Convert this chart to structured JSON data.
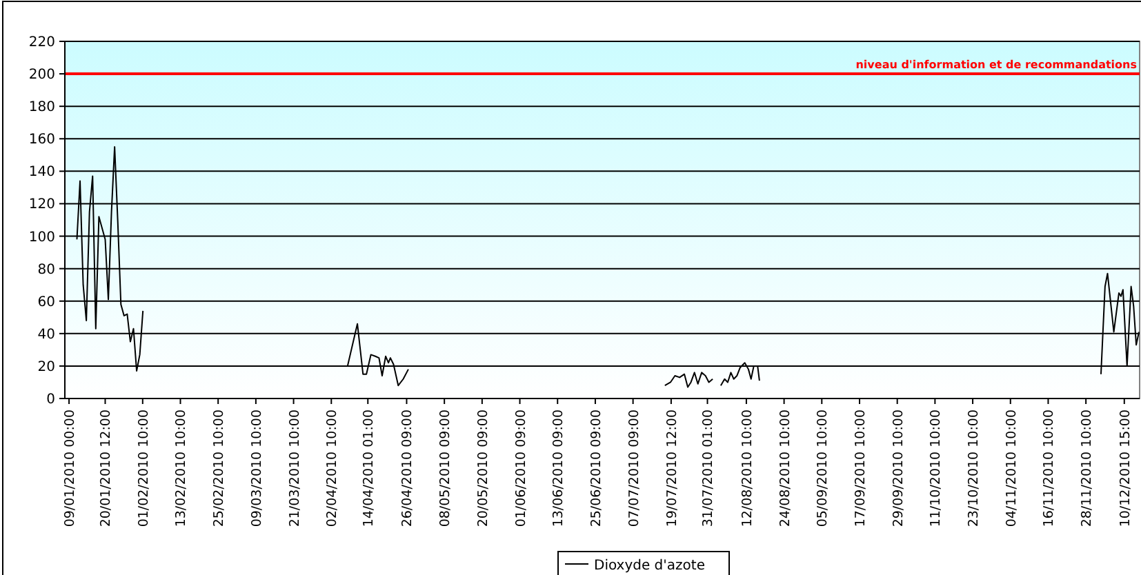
{
  "chart_data": {
    "type": "line",
    "x": [
      "2010-01-11T12:00",
      "2010-01-12T12:00",
      "2010-01-13T12:00",
      "2010-01-14T12:00",
      "2010-01-15T12:00",
      "2010-01-16T12:00",
      "2010-01-17T12:00",
      "2010-01-18T12:00",
      "2010-01-19T12:00",
      "2010-01-20T12:00",
      "2010-01-21T12:00",
      "2010-01-22T12:00",
      "2010-01-23T12:00",
      "2010-01-24T12:00",
      "2010-01-25T12:00",
      "2010-01-26T12:00",
      "2010-01-27T12:00",
      "2010-01-28T12:00",
      "2010-01-29T12:00",
      "2010-01-30T12:00",
      "2010-01-31T12:00",
      "2010-02-01T12:00",
      "2010-03-15T12:00",
      "2010-04-07T14:00",
      "2010-04-10T17:00",
      "2010-04-12T12:00",
      "2010-04-13T14:00",
      "2010-04-15T00:00",
      "2010-04-16T10:00",
      "2010-04-17T14:00",
      "2010-04-18T14:00",
      "2010-04-19T17:00",
      "2010-04-20T14:00",
      "2010-04-21T05:00",
      "2010-04-22T05:00",
      "2010-04-23T17:00",
      "2010-04-25T07:00",
      "2010-04-26T22:00",
      "2010-06-01T12:00",
      "2010-07-17T12:00",
      "2010-07-19T07:00",
      "2010-07-20T17:00",
      "2010-07-22T05:00",
      "2010-07-23T17:00",
      "2010-07-24T19:00",
      "2010-07-25T19:00",
      "2010-07-26T22:00",
      "2010-07-28T00:00",
      "2010-07-29T05:00",
      "2010-07-30T10:00",
      "2010-07-31T12:00",
      "2010-08-01T17:00",
      "2010-08-03T00:00",
      "2010-08-04T07:00",
      "2010-08-05T12:00",
      "2010-08-06T12:00",
      "2010-08-07T12:00",
      "2010-08-08T10:00",
      "2010-08-09T10:00",
      "2010-08-10T10:00",
      "2010-08-11T22:00",
      "2010-08-13T02:00",
      "2010-08-13T22:00",
      "2010-08-14T19:00",
      "2010-08-16T00:00",
      "2010-08-16T14:00",
      "2010-10-15T12:00",
      "2010-12-03T05:00",
      "2010-12-04T12:00",
      "2010-12-05T07:00",
      "2010-12-07T07:00",
      "2010-12-08T22:00",
      "2010-12-09T14:00",
      "2010-12-10T05:00",
      "2010-12-11T12:00",
      "2010-12-12T19:00",
      "2010-12-13T14:00",
      "2010-12-14T10:00",
      "2010-12-15T07:00"
    ],
    "series": [
      {
        "name": "Dioxyde d'azote",
        "color": "#000000",
        "values": [
          98,
          134,
          70,
          48,
          115,
          137,
          43,
          112,
          105,
          98,
          61,
          115,
          155,
          109,
          58,
          51,
          52,
          35,
          43,
          17,
          27,
          54,
          null,
          20,
          46,
          15,
          15,
          27,
          26,
          25,
          14,
          26,
          22,
          25,
          21,
          8,
          12,
          18,
          null,
          8,
          10,
          14,
          13,
          15,
          7,
          10,
          16,
          9,
          16,
          14,
          10,
          12,
          null,
          8,
          12,
          10,
          16,
          12,
          14,
          19,
          22,
          18,
          12,
          20,
          20,
          11,
          null,
          15,
          69,
          77,
          41,
          65,
          63,
          67,
          20,
          69,
          57,
          33,
          41
        ]
      }
    ],
    "xlim": [
      "2010-01-07T16:00",
      "2010-12-15T12:00"
    ],
    "xticks": [
      {
        "value": "2010-01-09T00:00",
        "label": "09/01/2010 00:00"
      },
      {
        "value": "2010-01-20T12:00",
        "label": "20/01/2010 12:00"
      },
      {
        "value": "2010-02-01T10:00",
        "label": "01/02/2010 10:00"
      },
      {
        "value": "2010-02-13T10:00",
        "label": "13/02/2010 10:00"
      },
      {
        "value": "2010-02-25T10:00",
        "label": "25/02/2010 10:00"
      },
      {
        "value": "2010-03-09T10:00",
        "label": "09/03/2010 10:00"
      },
      {
        "value": "2010-03-21T10:00",
        "label": "21/03/2010 10:00"
      },
      {
        "value": "2010-04-02T10:00",
        "label": "02/04/2010 10:00"
      },
      {
        "value": "2010-04-14T01:00",
        "label": "14/04/2010 01:00"
      },
      {
        "value": "2010-04-26T09:00",
        "label": "26/04/2010 09:00"
      },
      {
        "value": "2010-05-08T09:00",
        "label": "08/05/2010 09:00"
      },
      {
        "value": "2010-05-20T09:00",
        "label": "20/05/2010 09:00"
      },
      {
        "value": "2010-06-01T09:00",
        "label": "01/06/2010 09:00"
      },
      {
        "value": "2010-06-13T09:00",
        "label": "13/06/2010 09:00"
      },
      {
        "value": "2010-06-25T09:00",
        "label": "25/06/2010 09:00"
      },
      {
        "value": "2010-07-07T09:00",
        "label": "07/07/2010 09:00"
      },
      {
        "value": "2010-07-19T12:00",
        "label": "19/07/2010 12:00"
      },
      {
        "value": "2010-07-31T01:00",
        "label": "31/07/2010 01:00"
      },
      {
        "value": "2010-08-12T10:00",
        "label": "12/08/2010 10:00"
      },
      {
        "value": "2010-08-24T10:00",
        "label": "24/08/2010 10:00"
      },
      {
        "value": "2010-09-05T10:00",
        "label": "05/09/2010 10:00"
      },
      {
        "value": "2010-09-17T10:00",
        "label": "17/09/2010 10:00"
      },
      {
        "value": "2010-09-29T10:00",
        "label": "29/09/2010 10:00"
      },
      {
        "value": "2010-10-11T10:00",
        "label": "11/10/2010 10:00"
      },
      {
        "value": "2010-10-23T10:00",
        "label": "23/10/2010 10:00"
      },
      {
        "value": "2010-11-04T10:00",
        "label": "04/11/2010 10:00"
      },
      {
        "value": "2010-11-16T10:00",
        "label": "16/11/2010 10:00"
      },
      {
        "value": "2010-11-28T10:00",
        "label": "28/11/2010 10:00"
      },
      {
        "value": "2010-12-10T15:00",
        "label": "10/12/2010 15:00"
      }
    ],
    "ylim": [
      0,
      220
    ],
    "yticks": [
      0,
      20,
      40,
      60,
      80,
      100,
      120,
      140,
      160,
      180,
      200,
      220
    ],
    "grid": "y",
    "legend": "bottom",
    "marker": "none",
    "line_style": "solid",
    "ref_lines": [
      {
        "axis": "y",
        "value": 200,
        "label": "niveau d'information et de recommandations",
        "color": "#ff0000"
      }
    ]
  }
}
